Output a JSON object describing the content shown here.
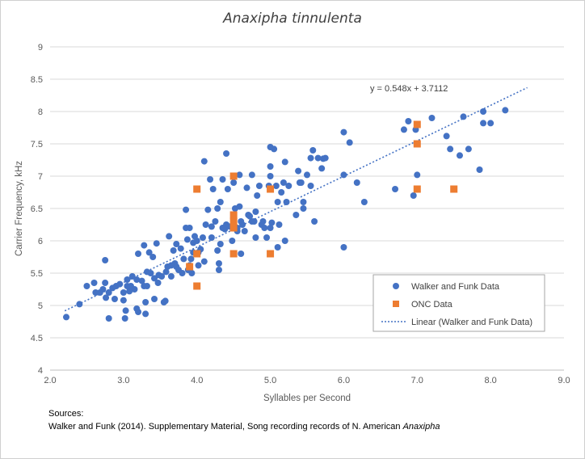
{
  "chart_data": {
    "type": "scatter",
    "title": "Anaxipha tinnulenta",
    "xlabel": "Syllables per Second",
    "ylabel": "Carrier Frequency, kHz",
    "xlim": [
      2.0,
      9.0
    ],
    "ylim": [
      4,
      9
    ],
    "x_ticks": [
      "2.0",
      "3.0",
      "4.0",
      "5.0",
      "6.0",
      "7.0",
      "8.0",
      "9.0"
    ],
    "y_ticks": [
      "4",
      "4.5",
      "5",
      "5.5",
      "6",
      "6.5",
      "7",
      "7.5",
      "8",
      "8.5",
      "9"
    ],
    "grid": "horizontal",
    "legend_position": "bottom-right",
    "trendline": {
      "label": "Linear (Walker and Funk Data)",
      "equation": "y = 0.548x + 3.7112",
      "slope": 0.548,
      "intercept": 3.7112,
      "x_range": [
        2.2,
        8.5
      ],
      "color": "#4472C4"
    },
    "series": [
      {
        "name": "Walker and Funk Data",
        "marker": "circle",
        "color": "#4472C4",
        "points": [
          [
            2.22,
            4.82
          ],
          [
            2.4,
            5.02
          ],
          [
            2.5,
            5.3
          ],
          [
            2.6,
            5.35
          ],
          [
            2.62,
            5.2
          ],
          [
            2.68,
            5.2
          ],
          [
            2.72,
            5.25
          ],
          [
            2.75,
            5.7
          ],
          [
            2.75,
            5.35
          ],
          [
            2.76,
            5.12
          ],
          [
            2.8,
            4.8
          ],
          [
            2.8,
            5.2
          ],
          [
            2.85,
            5.27
          ],
          [
            2.88,
            5.1
          ],
          [
            2.9,
            5.3
          ],
          [
            2.95,
            5.33
          ],
          [
            3.0,
            5.08
          ],
          [
            3.0,
            5.2
          ],
          [
            3.02,
            4.8
          ],
          [
            3.03,
            4.92
          ],
          [
            3.05,
            5.4
          ],
          [
            3.05,
            5.3
          ],
          [
            3.08,
            5.22
          ],
          [
            3.1,
            5.3
          ],
          [
            3.12,
            5.45
          ],
          [
            3.15,
            5.25
          ],
          [
            3.18,
            5.4
          ],
          [
            3.18,
            4.95
          ],
          [
            3.2,
            5.8
          ],
          [
            3.2,
            4.9
          ],
          [
            3.25,
            5.38
          ],
          [
            3.28,
            5.3
          ],
          [
            3.28,
            5.93
          ],
          [
            3.3,
            5.05
          ],
          [
            3.3,
            4.87
          ],
          [
            3.32,
            5.3
          ],
          [
            3.32,
            5.52
          ],
          [
            3.35,
            5.82
          ],
          [
            3.37,
            5.5
          ],
          [
            3.4,
            5.75
          ],
          [
            3.42,
            5.42
          ],
          [
            3.42,
            5.1
          ],
          [
            3.45,
            5.96
          ],
          [
            3.47,
            5.35
          ],
          [
            3.48,
            5.47
          ],
          [
            3.52,
            5.45
          ],
          [
            3.55,
            5.05
          ],
          [
            3.57,
            5.07
          ],
          [
            3.58,
            5.52
          ],
          [
            3.6,
            5.6
          ],
          [
            3.62,
            6.07
          ],
          [
            3.65,
            5.62
          ],
          [
            3.65,
            5.45
          ],
          [
            3.68,
            5.85
          ],
          [
            3.7,
            5.65
          ],
          [
            3.72,
            5.6
          ],
          [
            3.72,
            5.95
          ],
          [
            3.75,
            5.55
          ],
          [
            3.78,
            5.88
          ],
          [
            3.8,
            5.5
          ],
          [
            3.82,
            5.72
          ],
          [
            3.85,
            6.2
          ],
          [
            3.85,
            6.48
          ],
          [
            3.87,
            6.02
          ],
          [
            3.88,
            5.55
          ],
          [
            3.9,
            5.62
          ],
          [
            3.9,
            6.2
          ],
          [
            3.92,
            5.72
          ],
          [
            3.93,
            5.5
          ],
          [
            3.95,
            5.82
          ],
          [
            3.95,
            5.97
          ],
          [
            3.97,
            6.07
          ],
          [
            4.0,
            6.0
          ],
          [
            4.02,
            5.62
          ],
          [
            4.02,
            5.82
          ],
          [
            4.05,
            5.87
          ],
          [
            4.08,
            6.05
          ],
          [
            4.1,
            5.68
          ],
          [
            4.1,
            7.23
          ],
          [
            4.12,
            6.25
          ],
          [
            4.15,
            6.48
          ],
          [
            4.18,
            6.95
          ],
          [
            4.2,
            6.22
          ],
          [
            4.2,
            6.05
          ],
          [
            4.22,
            6.8
          ],
          [
            4.25,
            6.3
          ],
          [
            4.28,
            6.5
          ],
          [
            4.28,
            5.85
          ],
          [
            4.3,
            5.65
          ],
          [
            4.3,
            5.55
          ],
          [
            4.32,
            6.6
          ],
          [
            4.32,
            5.95
          ],
          [
            4.35,
            6.95
          ],
          [
            4.35,
            6.2
          ],
          [
            4.38,
            6.18
          ],
          [
            4.4,
            7.35
          ],
          [
            4.4,
            6.25
          ],
          [
            4.42,
            6.8
          ],
          [
            4.45,
            6.22
          ],
          [
            4.48,
            6.0
          ],
          [
            4.5,
            6.9
          ],
          [
            4.52,
            6.5
          ],
          [
            4.55,
            6.2
          ],
          [
            4.55,
            6.15
          ],
          [
            4.58,
            7.02
          ],
          [
            4.58,
            6.53
          ],
          [
            4.6,
            6.3
          ],
          [
            4.6,
            5.8
          ],
          [
            4.62,
            6.25
          ],
          [
            4.65,
            6.15
          ],
          [
            4.68,
            6.82
          ],
          [
            4.7,
            6.4
          ],
          [
            4.72,
            6.38
          ],
          [
            4.75,
            6.3
          ],
          [
            4.75,
            7.02
          ],
          [
            4.78,
            6.3
          ],
          [
            4.8,
            6.05
          ],
          [
            4.8,
            6.45
          ],
          [
            4.82,
            6.7
          ],
          [
            4.85,
            6.85
          ],
          [
            4.88,
            6.25
          ],
          [
            4.9,
            6.3
          ],
          [
            4.92,
            6.2
          ],
          [
            4.95,
            6.05
          ],
          [
            4.98,
            6.85
          ],
          [
            5.0,
            7.45
          ],
          [
            5.0,
            7.15
          ],
          [
            5.0,
            7.0
          ],
          [
            5.0,
            6.2
          ],
          [
            5.02,
            6.28
          ],
          [
            5.05,
            7.42
          ],
          [
            5.08,
            6.85
          ],
          [
            5.1,
            6.6
          ],
          [
            5.1,
            5.9
          ],
          [
            5.12,
            6.25
          ],
          [
            5.15,
            6.75
          ],
          [
            5.18,
            6.9
          ],
          [
            5.2,
            7.22
          ],
          [
            5.2,
            6.0
          ],
          [
            5.22,
            6.6
          ],
          [
            5.25,
            6.85
          ],
          [
            5.35,
            6.4
          ],
          [
            5.38,
            7.08
          ],
          [
            5.4,
            6.9
          ],
          [
            5.42,
            6.9
          ],
          [
            5.45,
            6.6
          ],
          [
            5.45,
            6.5
          ],
          [
            5.5,
            7.02
          ],
          [
            5.55,
            7.28
          ],
          [
            5.55,
            6.85
          ],
          [
            5.58,
            7.4
          ],
          [
            5.6,
            6.3
          ],
          [
            5.65,
            7.28
          ],
          [
            5.7,
            7.12
          ],
          [
            5.72,
            7.27
          ],
          [
            5.75,
            7.28
          ],
          [
            6.0,
            7.68
          ],
          [
            6.0,
            7.02
          ],
          [
            6.0,
            5.9
          ],
          [
            6.08,
            7.52
          ],
          [
            6.18,
            6.9
          ],
          [
            6.28,
            6.6
          ],
          [
            6.7,
            6.8
          ],
          [
            6.82,
            7.72
          ],
          [
            6.88,
            7.85
          ],
          [
            6.95,
            6.7
          ],
          [
            6.98,
            7.72
          ],
          [
            7.0,
            7.02
          ],
          [
            7.0,
            6.8
          ],
          [
            7.2,
            7.9
          ],
          [
            7.4,
            7.62
          ],
          [
            7.45,
            7.42
          ],
          [
            7.58,
            7.32
          ],
          [
            7.63,
            7.92
          ],
          [
            7.7,
            7.42
          ],
          [
            7.85,
            7.1
          ],
          [
            7.9,
            8.0
          ],
          [
            7.9,
            7.82
          ],
          [
            8.0,
            7.82
          ],
          [
            8.2,
            8.02
          ]
        ]
      },
      {
        "name": "ONC Data",
        "marker": "square",
        "color": "#ED7D31",
        "points": [
          [
            3.9,
            5.6
          ],
          [
            4.0,
            6.8
          ],
          [
            4.0,
            5.8
          ],
          [
            4.0,
            5.3
          ],
          [
            4.5,
            7.0
          ],
          [
            4.5,
            6.4
          ],
          [
            4.5,
            6.3
          ],
          [
            4.5,
            6.2
          ],
          [
            4.5,
            5.8
          ],
          [
            5.0,
            6.8
          ],
          [
            5.0,
            5.8
          ],
          [
            7.0,
            7.8
          ],
          [
            7.0,
            7.5
          ],
          [
            7.0,
            6.8
          ],
          [
            7.5,
            6.8
          ]
        ]
      }
    ]
  },
  "sources": {
    "heading": "Sources:",
    "citation_text": "Walker and Funk (2014). Supplementary Material, Song recording records of N. American ",
    "citation_italic": "Anaxipha"
  }
}
